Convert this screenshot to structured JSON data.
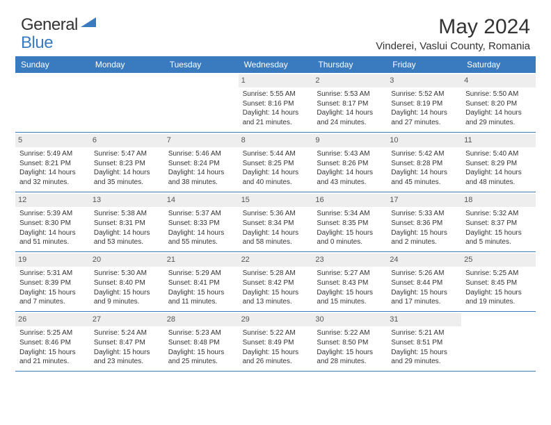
{
  "logo": {
    "text_part1": "General",
    "text_part2": "Blue"
  },
  "title": "May 2024",
  "location": "Vinderei, Vaslui County, Romania",
  "colors": {
    "accent": "#3a7bbf",
    "day_bg": "#eeeeee",
    "text": "#333333"
  },
  "day_names": [
    "Sunday",
    "Monday",
    "Tuesday",
    "Wednesday",
    "Thursday",
    "Friday",
    "Saturday"
  ],
  "weeks": [
    [
      null,
      null,
      null,
      {
        "n": "1",
        "sr": "5:55 AM",
        "ss": "8:16 PM",
        "dl": "14 hours and 21 minutes."
      },
      {
        "n": "2",
        "sr": "5:53 AM",
        "ss": "8:17 PM",
        "dl": "14 hours and 24 minutes."
      },
      {
        "n": "3",
        "sr": "5:52 AM",
        "ss": "8:19 PM",
        "dl": "14 hours and 27 minutes."
      },
      {
        "n": "4",
        "sr": "5:50 AM",
        "ss": "8:20 PM",
        "dl": "14 hours and 29 minutes."
      }
    ],
    [
      {
        "n": "5",
        "sr": "5:49 AM",
        "ss": "8:21 PM",
        "dl": "14 hours and 32 minutes."
      },
      {
        "n": "6",
        "sr": "5:47 AM",
        "ss": "8:23 PM",
        "dl": "14 hours and 35 minutes."
      },
      {
        "n": "7",
        "sr": "5:46 AM",
        "ss": "8:24 PM",
        "dl": "14 hours and 38 minutes."
      },
      {
        "n": "8",
        "sr": "5:44 AM",
        "ss": "8:25 PM",
        "dl": "14 hours and 40 minutes."
      },
      {
        "n": "9",
        "sr": "5:43 AM",
        "ss": "8:26 PM",
        "dl": "14 hours and 43 minutes."
      },
      {
        "n": "10",
        "sr": "5:42 AM",
        "ss": "8:28 PM",
        "dl": "14 hours and 45 minutes."
      },
      {
        "n": "11",
        "sr": "5:40 AM",
        "ss": "8:29 PM",
        "dl": "14 hours and 48 minutes."
      }
    ],
    [
      {
        "n": "12",
        "sr": "5:39 AM",
        "ss": "8:30 PM",
        "dl": "14 hours and 51 minutes."
      },
      {
        "n": "13",
        "sr": "5:38 AM",
        "ss": "8:31 PM",
        "dl": "14 hours and 53 minutes."
      },
      {
        "n": "14",
        "sr": "5:37 AM",
        "ss": "8:33 PM",
        "dl": "14 hours and 55 minutes."
      },
      {
        "n": "15",
        "sr": "5:36 AM",
        "ss": "8:34 PM",
        "dl": "14 hours and 58 minutes."
      },
      {
        "n": "16",
        "sr": "5:34 AM",
        "ss": "8:35 PM",
        "dl": "15 hours and 0 minutes."
      },
      {
        "n": "17",
        "sr": "5:33 AM",
        "ss": "8:36 PM",
        "dl": "15 hours and 2 minutes."
      },
      {
        "n": "18",
        "sr": "5:32 AM",
        "ss": "8:37 PM",
        "dl": "15 hours and 5 minutes."
      }
    ],
    [
      {
        "n": "19",
        "sr": "5:31 AM",
        "ss": "8:39 PM",
        "dl": "15 hours and 7 minutes."
      },
      {
        "n": "20",
        "sr": "5:30 AM",
        "ss": "8:40 PM",
        "dl": "15 hours and 9 minutes."
      },
      {
        "n": "21",
        "sr": "5:29 AM",
        "ss": "8:41 PM",
        "dl": "15 hours and 11 minutes."
      },
      {
        "n": "22",
        "sr": "5:28 AM",
        "ss": "8:42 PM",
        "dl": "15 hours and 13 minutes."
      },
      {
        "n": "23",
        "sr": "5:27 AM",
        "ss": "8:43 PM",
        "dl": "15 hours and 15 minutes."
      },
      {
        "n": "24",
        "sr": "5:26 AM",
        "ss": "8:44 PM",
        "dl": "15 hours and 17 minutes."
      },
      {
        "n": "25",
        "sr": "5:25 AM",
        "ss": "8:45 PM",
        "dl": "15 hours and 19 minutes."
      }
    ],
    [
      {
        "n": "26",
        "sr": "5:25 AM",
        "ss": "8:46 PM",
        "dl": "15 hours and 21 minutes."
      },
      {
        "n": "27",
        "sr": "5:24 AM",
        "ss": "8:47 PM",
        "dl": "15 hours and 23 minutes."
      },
      {
        "n": "28",
        "sr": "5:23 AM",
        "ss": "8:48 PM",
        "dl": "15 hours and 25 minutes."
      },
      {
        "n": "29",
        "sr": "5:22 AM",
        "ss": "8:49 PM",
        "dl": "15 hours and 26 minutes."
      },
      {
        "n": "30",
        "sr": "5:22 AM",
        "ss": "8:50 PM",
        "dl": "15 hours and 28 minutes."
      },
      {
        "n": "31",
        "sr": "5:21 AM",
        "ss": "8:51 PM",
        "dl": "15 hours and 29 minutes."
      },
      null
    ]
  ],
  "labels": {
    "sunrise": "Sunrise:",
    "sunset": "Sunset:",
    "daylight": "Daylight:"
  }
}
